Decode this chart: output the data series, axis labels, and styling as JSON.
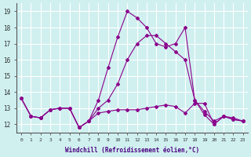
{
  "xlabel": "Windchill (Refroidissement éolien,°C)",
  "ylabel": "",
  "bg_color": "#d0f0f0",
  "grid_color": "#ffffff",
  "line_color": "#8b008b",
  "x_ticks": [
    0,
    1,
    2,
    3,
    4,
    5,
    6,
    7,
    8,
    9,
    10,
    11,
    12,
    13,
    14,
    15,
    16,
    17,
    18,
    19,
    20,
    21,
    22,
    23
  ],
  "y_ticks": [
    12,
    13,
    14,
    15,
    16,
    17,
    18,
    19
  ],
  "ylim": [
    11.5,
    19.5
  ],
  "xlim": [
    -0.5,
    23.5
  ],
  "series": [
    [
      13.6,
      12.5,
      12.4,
      12.9,
      13.0,
      13.0,
      11.8,
      12.2,
      12.7,
      12.8,
      12.9,
      12.9,
      12.9,
      13.0,
      13.1,
      13.2,
      13.1,
      12.7,
      13.3,
      13.3,
      12.0,
      12.5,
      12.3,
      12.2
    ],
    [
      13.6,
      12.5,
      12.4,
      12.9,
      13.0,
      13.0,
      11.8,
      12.2,
      13.5,
      15.5,
      17.4,
      19.0,
      18.6,
      18.0,
      17.0,
      16.8,
      17.0,
      18.0,
      13.5,
      12.6,
      12.0,
      12.5,
      12.3,
      12.2
    ],
    [
      13.6,
      12.5,
      12.4,
      12.9,
      13.0,
      13.0,
      11.8,
      12.2,
      13.0,
      13.5,
      14.5,
      16.0,
      17.0,
      17.5,
      17.5,
      17.0,
      16.5,
      16.0,
      13.5,
      12.8,
      12.2,
      12.5,
      12.4,
      12.2
    ]
  ]
}
